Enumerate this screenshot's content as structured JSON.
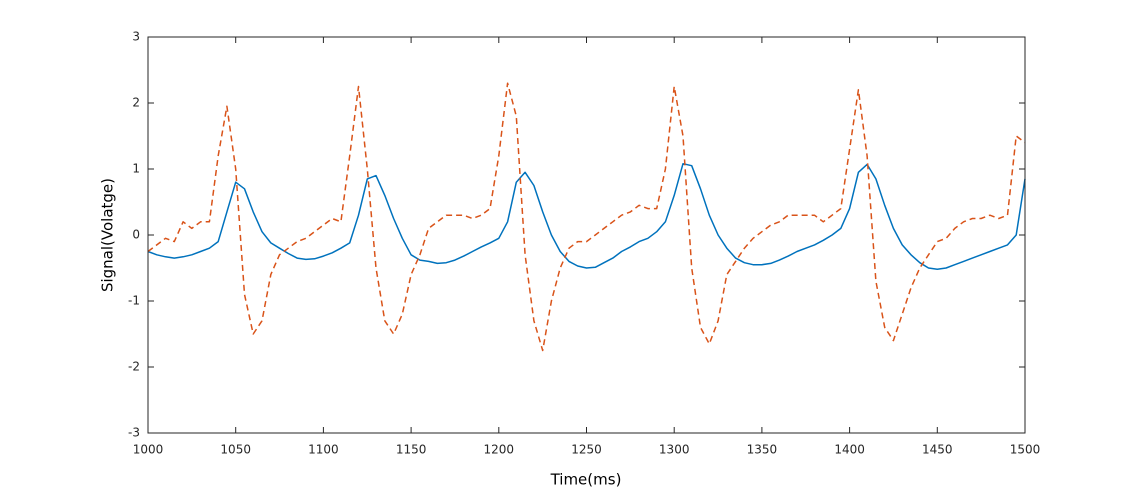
{
  "chart_data": {
    "type": "line",
    "xlabel": "Time(ms)",
    "ylabel": "Signal(Volatge)",
    "xlim": [
      1000,
      1500
    ],
    "xticks": [
      1000,
      1050,
      1100,
      1150,
      1200,
      1250,
      1300,
      1350,
      1400,
      1450,
      1500
    ],
    "ylim": [
      -3,
      3
    ],
    "yticks": [
      -3,
      -2,
      -1,
      0,
      1,
      2,
      3
    ],
    "grid": false,
    "x": [
      1000,
      1005,
      1010,
      1015,
      1020,
      1025,
      1030,
      1035,
      1040,
      1045,
      1050,
      1055,
      1060,
      1065,
      1070,
      1075,
      1080,
      1085,
      1090,
      1095,
      1100,
      1105,
      1110,
      1115,
      1120,
      1125,
      1130,
      1135,
      1140,
      1145,
      1150,
      1155,
      1160,
      1165,
      1170,
      1175,
      1180,
      1185,
      1190,
      1195,
      1200,
      1205,
      1210,
      1215,
      1220,
      1225,
      1230,
      1235,
      1240,
      1245,
      1250,
      1255,
      1260,
      1265,
      1270,
      1275,
      1280,
      1285,
      1290,
      1295,
      1300,
      1305,
      1310,
      1315,
      1320,
      1325,
      1330,
      1335,
      1340,
      1345,
      1350,
      1355,
      1360,
      1365,
      1370,
      1375,
      1380,
      1385,
      1390,
      1395,
      1400,
      1405,
      1410,
      1415,
      1420,
      1425,
      1430,
      1435,
      1440,
      1445,
      1450,
      1455,
      1460,
      1465,
      1470,
      1475,
      1480,
      1485,
      1490,
      1495,
      1500
    ],
    "series": [
      {
        "color": "#0072bd",
        "dash": false,
        "values": [
          -0.25,
          -0.3,
          -0.33,
          -0.35,
          -0.33,
          -0.3,
          -0.25,
          -0.2,
          -0.1,
          0.35,
          0.8,
          0.7,
          0.35,
          0.05,
          -0.12,
          -0.2,
          -0.28,
          -0.35,
          -0.37,
          -0.36,
          -0.32,
          -0.27,
          -0.2,
          -0.12,
          0.3,
          0.85,
          0.9,
          0.6,
          0.25,
          -0.05,
          -0.3,
          -0.38,
          -0.4,
          -0.43,
          -0.42,
          -0.38,
          -0.32,
          -0.25,
          -0.18,
          -0.12,
          -0.05,
          0.2,
          0.8,
          0.95,
          0.75,
          0.35,
          0.0,
          -0.25,
          -0.4,
          -0.47,
          -0.5,
          -0.49,
          -0.42,
          -0.35,
          -0.25,
          -0.18,
          -0.1,
          -0.05,
          0.05,
          0.2,
          0.6,
          1.08,
          1.05,
          0.7,
          0.3,
          0.0,
          -0.2,
          -0.35,
          -0.42,
          -0.45,
          -0.45,
          -0.43,
          -0.38,
          -0.32,
          -0.25,
          -0.2,
          -0.15,
          -0.08,
          0.0,
          0.1,
          0.4,
          0.95,
          1.07,
          0.85,
          0.45,
          0.1,
          -0.15,
          -0.3,
          -0.42,
          -0.5,
          -0.52,
          -0.5,
          -0.45,
          -0.4,
          -0.35,
          -0.3,
          -0.25,
          -0.2,
          -0.15,
          0.0,
          0.85
        ]
      },
      {
        "color": "#d95319",
        "dash": true,
        "values": [
          -0.25,
          -0.15,
          -0.05,
          -0.1,
          0.2,
          0.1,
          0.2,
          0.2,
          1.2,
          1.95,
          1.0,
          -0.9,
          -1.5,
          -1.3,
          -0.6,
          -0.3,
          -0.2,
          -0.1,
          -0.05,
          0.05,
          0.15,
          0.25,
          0.2,
          1.2,
          2.25,
          1.0,
          -0.5,
          -1.3,
          -1.5,
          -1.2,
          -0.6,
          -0.3,
          0.1,
          0.2,
          0.3,
          0.3,
          0.3,
          0.25,
          0.3,
          0.4,
          1.2,
          2.3,
          1.8,
          -0.3,
          -1.3,
          -1.75,
          -1.0,
          -0.5,
          -0.2,
          -0.1,
          -0.1,
          0.0,
          0.1,
          0.2,
          0.3,
          0.35,
          0.45,
          0.4,
          0.4,
          1.0,
          2.25,
          1.5,
          -0.5,
          -1.4,
          -1.65,
          -1.3,
          -0.6,
          -0.4,
          -0.2,
          -0.05,
          0.05,
          0.15,
          0.2,
          0.3,
          0.3,
          0.3,
          0.3,
          0.2,
          0.3,
          0.4,
          1.3,
          2.2,
          1.2,
          -0.7,
          -1.4,
          -1.6,
          -1.2,
          -0.8,
          -0.5,
          -0.3,
          -0.1,
          -0.05,
          0.1,
          0.2,
          0.25,
          0.25,
          0.3,
          0.25,
          0.3,
          1.5,
          1.4
        ]
      }
    ]
  }
}
